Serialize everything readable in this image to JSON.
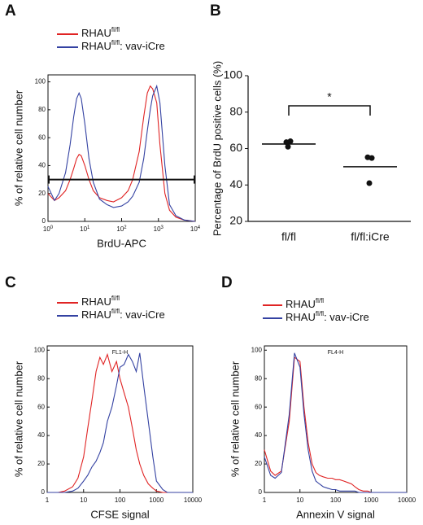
{
  "chart_data": [
    {
      "panel": "A",
      "type": "line",
      "log_x": true,
      "xlabel": "BrdU-APC",
      "ylabel": "% of relative cell number",
      "xlim": [
        1,
        10000
      ],
      "xticks": [
        {
          "value": 1,
          "label": "10",
          "label_sup": "0"
        },
        {
          "value": 10,
          "label": "10",
          "label_sup": "1"
        },
        {
          "value": 100,
          "label": "10",
          "label_sup": "2"
        },
        {
          "value": 1000,
          "label": "10",
          "label_sup": "3"
        },
        {
          "value": 10000,
          "label": "10",
          "label_sup": "4"
        }
      ],
      "ylim": [
        0,
        105
      ],
      "yticks": [
        0,
        20,
        40,
        60,
        80,
        100
      ],
      "gate": 30,
      "x": [
        1,
        1.5,
        2,
        3,
        4,
        5,
        6,
        7,
        8,
        10,
        13,
        17,
        25,
        40,
        60,
        100,
        150,
        200,
        300,
        400,
        500,
        600,
        700,
        900,
        1100,
        1500,
        2000,
        3000,
        5000,
        10000
      ],
      "series": [
        {
          "name": "RHAU",
          "name_sup": "fl/fl",
          "color": "#e02424",
          "values": [
            20,
            15,
            17,
            22,
            30,
            38,
            45,
            48,
            47,
            40,
            30,
            22,
            17,
            15,
            14,
            17,
            22,
            30,
            50,
            75,
            92,
            97,
            95,
            85,
            55,
            20,
            8,
            3,
            1,
            0
          ]
        },
        {
          "name": "RHAU",
          "name_sup": "fl/fl",
          "name_suffix": ": vav-iCre",
          "color": "#3442a2",
          "values": [
            25,
            15,
            20,
            35,
            55,
            75,
            88,
            92,
            88,
            70,
            45,
            28,
            16,
            12,
            10,
            11,
            14,
            18,
            28,
            45,
            65,
            80,
            90,
            97,
            85,
            40,
            12,
            4,
            1,
            0
          ]
        }
      ]
    },
    {
      "panel": "B",
      "type": "dot",
      "ylabel": "Percentage of BrdU positive cells (%)",
      "categories": [
        "fl/fl",
        "fl/fl:iCre"
      ],
      "ylim": [
        20,
        100
      ],
      "yticks": [
        20,
        40,
        60,
        80,
        100
      ],
      "annotation": "*",
      "color": "#111111",
      "points": [
        [
          63.5,
          64,
          61
        ],
        [
          55.2,
          54.8,
          41
        ]
      ],
      "means": [
        62.5,
        50
      ]
    },
    {
      "panel": "C",
      "type": "line",
      "log_x": true,
      "xlabel": "CFSE signal",
      "ylabel": "% of relative cell number",
      "inner_label": "FL1-H",
      "xlim": [
        1,
        10000
      ],
      "xticks": [
        1,
        10,
        100,
        1000,
        10000
      ],
      "ylim": [
        0,
        103
      ],
      "yticks": [
        0,
        20,
        40,
        60,
        80,
        100
      ],
      "x": [
        1,
        1.5,
        2,
        3,
        5,
        7,
        10,
        13,
        17,
        22,
        28,
        35,
        45,
        60,
        80,
        100,
        130,
        170,
        220,
        280,
        350,
        450,
        600,
        800,
        1000,
        1500,
        2000,
        3000,
        5000,
        10000
      ],
      "series": [
        {
          "name": "RHAU",
          "name_sup": "fl/fl",
          "color": "#e02424",
          "values": [
            0,
            0,
            0,
            1,
            4,
            10,
            25,
            45,
            65,
            85,
            95,
            90,
            97,
            85,
            92,
            80,
            70,
            60,
            45,
            30,
            20,
            12,
            6,
            3,
            1,
            0,
            0,
            0,
            0,
            0
          ]
        },
        {
          "name": "RHAU",
          "name_sup": "fl/fl",
          "name_suffix": ": vav-iCre",
          "color": "#3442a2",
          "values": [
            0,
            0,
            0,
            0,
            1,
            3,
            8,
            12,
            18,
            22,
            28,
            35,
            50,
            60,
            75,
            88,
            90,
            97,
            92,
            85,
            98,
            75,
            50,
            25,
            8,
            2,
            0,
            0,
            0,
            0
          ]
        }
      ]
    },
    {
      "panel": "D",
      "type": "line",
      "log_x": true,
      "xlabel": "Annexin V signal",
      "ylabel": "% of relative cell number",
      "inner_label": "FL4-H",
      "xlim": [
        1,
        10000
      ],
      "xticks": [
        1,
        10,
        100,
        1000,
        10000
      ],
      "ylim": [
        0,
        103
      ],
      "yticks": [
        0,
        20,
        40,
        60,
        80,
        100
      ],
      "x": [
        1,
        1.5,
        2,
        3,
        5,
        7,
        10,
        13,
        17,
        22,
        28,
        35,
        45,
        60,
        80,
        100,
        130,
        170,
        220,
        280,
        350,
        450,
        600,
        800,
        1000,
        1500,
        2000,
        3000,
        5000,
        10000
      ],
      "series": [
        {
          "name": "RHAU",
          "name_sup": "fl/fl",
          "color": "#e02424",
          "values": [
            30,
            15,
            12,
            15,
            50,
            95,
            92,
            60,
            35,
            20,
            14,
            12,
            11,
            10,
            10,
            9,
            9,
            8,
            7,
            6,
            4,
            2,
            1,
            1,
            0,
            0,
            0,
            0,
            0,
            0
          ]
        },
        {
          "name": "RHAU",
          "name_sup": "fl/fl",
          "name_suffix": ": vav-iCre",
          "color": "#3442a2",
          "values": [
            25,
            12,
            10,
            14,
            55,
            98,
            88,
            55,
            30,
            15,
            8,
            6,
            4,
            3,
            2,
            2,
            1,
            1,
            1,
            1,
            1,
            0,
            0,
            0,
            0,
            0,
            0,
            0,
            0,
            0
          ]
        }
      ]
    }
  ]
}
